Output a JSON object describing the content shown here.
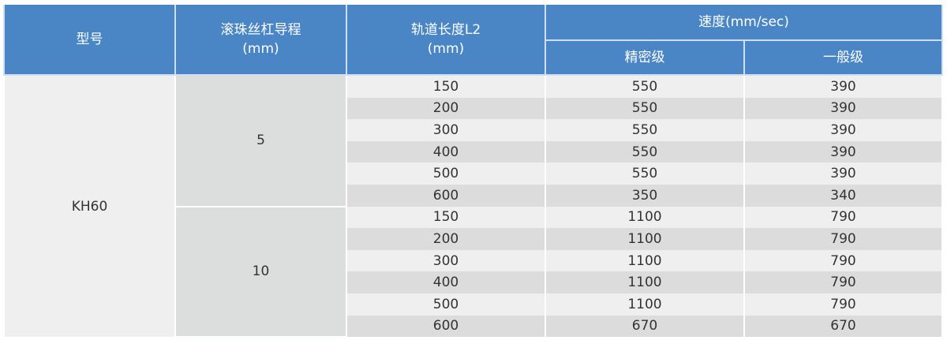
{
  "headers": {
    "model": "型号",
    "lead": "滚珠丝杠导程",
    "lead_unit": "(mm)",
    "length": "轨道长度L2",
    "length_unit": "(mm)",
    "speed": "速度(mm/sec)",
    "precision": "精密级",
    "general": "一般级"
  },
  "model": "KH60",
  "groups": [
    {
      "lead": "5",
      "rows": [
        {
          "length": "150",
          "precision": "550",
          "general": "390"
        },
        {
          "length": "200",
          "precision": "550",
          "general": "390"
        },
        {
          "length": "300",
          "precision": "550",
          "general": "390"
        },
        {
          "length": "400",
          "precision": "550",
          "general": "390"
        },
        {
          "length": "500",
          "precision": "550",
          "general": "390"
        },
        {
          "length": "600",
          "precision": "350",
          "general": "340"
        }
      ]
    },
    {
      "lead": "10",
      "rows": [
        {
          "length": "150",
          "precision": "1100",
          "general": "790"
        },
        {
          "length": "200",
          "precision": "1100",
          "general": "790"
        },
        {
          "length": "300",
          "precision": "1100",
          "general": "790"
        },
        {
          "length": "400",
          "precision": "1100",
          "general": "790"
        },
        {
          "length": "500",
          "precision": "1100",
          "general": "790"
        },
        {
          "length": "600",
          "precision": "670",
          "general": "670"
        }
      ]
    }
  ],
  "colors": {
    "header": "#4a86c5",
    "row_light": "#efefef",
    "row_dark": "#dcdcdc"
  }
}
